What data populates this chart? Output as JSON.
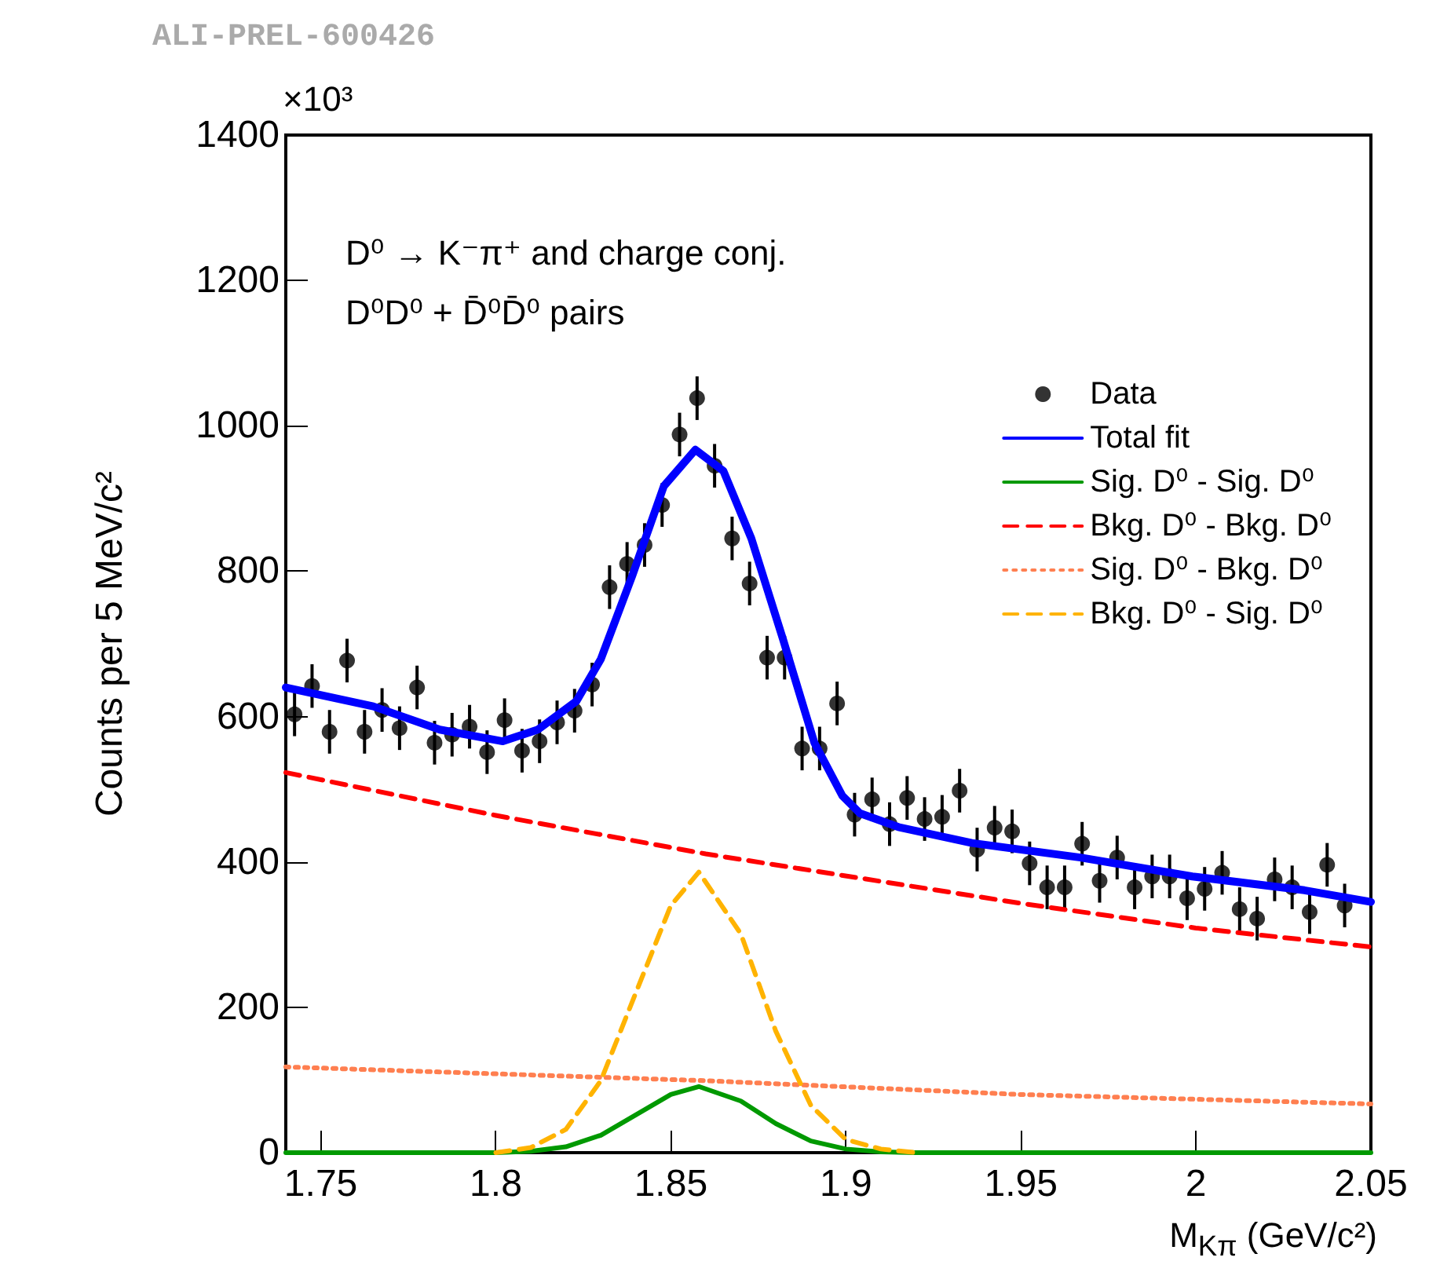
{
  "chart_data": {
    "type": "line",
    "xlabel": "M$_{Kπ}$ (GeV/c²)",
    "ylabel": "Counts per 5 MeV/c²",
    "annotations": [
      "ALI-PREL-600426",
      "×10³",
      "D⁰ → K⁻π⁺ and charge conj.",
      "D⁰D⁰ + D̄⁰D̄⁰ pairs"
    ],
    "xlim": [
      1.74,
      2.05
    ],
    "xticks": [
      1.75,
      1.8,
      1.85,
      1.9,
      1.95,
      2,
      2.05
    ],
    "ylim": [
      0,
      1400
    ],
    "yticks": [
      0,
      200,
      400,
      600,
      800,
      1000,
      1200,
      1400
    ],
    "grid": false,
    "legend": "top right",
    "marker": "none",
    "series": [
      {
        "name": "Data",
        "type": "scatter",
        "marker": "circle",
        "color": "#000000",
        "x": [
          1.7425,
          1.7475,
          1.7525,
          1.7575,
          1.7625,
          1.7675,
          1.7725,
          1.7775,
          1.7825,
          1.7875,
          1.7925,
          1.7975,
          1.8025,
          1.8075,
          1.8125,
          1.8175,
          1.8225,
          1.8275,
          1.8325,
          1.8375,
          1.8425,
          1.8475,
          1.8525,
          1.8575,
          1.8625,
          1.8675,
          1.8725,
          1.8775,
          1.8825,
          1.8875,
          1.8925,
          1.8975,
          1.9025,
          1.9075,
          1.9125,
          1.9175,
          1.9225,
          1.9275,
          1.9325,
          1.9375,
          1.9425,
          1.9475,
          1.9525,
          1.9575,
          1.9625,
          1.9675,
          1.9725,
          1.9775,
          1.9825,
          1.9875,
          1.9925,
          1.9975,
          2.0025,
          2.0075,
          2.0125,
          2.0175,
          2.0225,
          2.0275,
          2.0325,
          2.0375,
          2.0425
        ],
        "values": [
          603,
          642,
          579,
          677,
          579,
          609,
          584,
          640,
          564,
          575,
          586,
          551,
          595,
          553,
          566,
          592,
          608,
          644,
          778,
          810,
          836,
          891,
          988,
          1038,
          945,
          845,
          783,
          681,
          681,
          556,
          556,
          618,
          465,
          486,
          452,
          488,
          459,
          462,
          498,
          417,
          447,
          442,
          398,
          365,
          365,
          425,
          374,
          406,
          365,
          380,
          380,
          350,
          363,
          385,
          335,
          322,
          376,
          365,
          331,
          396,
          340
        ],
        "errors": [
          30,
          30,
          30,
          30,
          30,
          30,
          30,
          30,
          30,
          30,
          30,
          30,
          30,
          30,
          30,
          30,
          30,
          30,
          30,
          30,
          30,
          30,
          30,
          30,
          30,
          30,
          30,
          30,
          30,
          30,
          30,
          30,
          30,
          30,
          30,
          30,
          30,
          30,
          30,
          30,
          30,
          30,
          30,
          30,
          30,
          30,
          30,
          30,
          30,
          30,
          30,
          30,
          30,
          30,
          30,
          30,
          30,
          30,
          30,
          30,
          30
        ]
      },
      {
        "name": "Total fit",
        "color": "#0000ff",
        "line_style": "solid",
        "x": [
          1.74,
          1.765,
          1.784,
          1.802,
          1.812,
          1.823,
          1.83,
          1.839,
          1.848,
          1.857,
          1.865,
          1.873,
          1.882,
          1.891,
          1.899,
          1.904,
          1.915,
          1.936,
          1.967,
          1.999,
          2.031,
          2.05
        ],
        "values": [
          640,
          614,
          582,
          566,
          582,
          621,
          679,
          794,
          917,
          967,
          938,
          845,
          707,
          564,
          491,
          467,
          448,
          426,
          406,
          380,
          361,
          345
        ]
      },
      {
        "name": "Sig. D⁰ - Sig. D⁰",
        "color": "#009900",
        "line_style": "solid",
        "x": [
          1.74,
          1.8,
          1.81,
          1.82,
          1.83,
          1.84,
          1.85,
          1.858,
          1.87,
          1.88,
          1.89,
          1.9,
          1.91,
          1.92,
          2.05
        ],
        "values": [
          0,
          0,
          2,
          8,
          24,
          52,
          80,
          91,
          71,
          40,
          16,
          5,
          1,
          0,
          0
        ]
      },
      {
        "name": "Bkg. D⁰ - Bkg. D⁰",
        "color": "#ff0000",
        "line_style": "dashed",
        "x": [
          1.74,
          1.8,
          1.86,
          1.95,
          2,
          2.05
        ],
        "values": [
          523,
          464,
          411,
          343,
          309,
          283
        ]
      },
      {
        "name": "Sig. D⁰ - Bkg. D⁰",
        "color": "#ff7f50",
        "line_style": "dotted",
        "x": [
          1.74,
          1.86,
          1.95,
          2.05
        ],
        "values": [
          118,
          99,
          80,
          67
        ]
      },
      {
        "name": "Bkg. D⁰ - Sig. D⁰",
        "color": "#ffb300",
        "line_style": "dashed",
        "x": [
          1.8,
          1.81,
          1.82,
          1.83,
          1.84,
          1.85,
          1.858,
          1.87,
          1.88,
          1.89,
          1.9,
          1.91,
          1.92
        ],
        "values": [
          0,
          7,
          32,
          99,
          220,
          340,
          386,
          301,
          167,
          65,
          18,
          5,
          0
        ]
      }
    ]
  }
}
